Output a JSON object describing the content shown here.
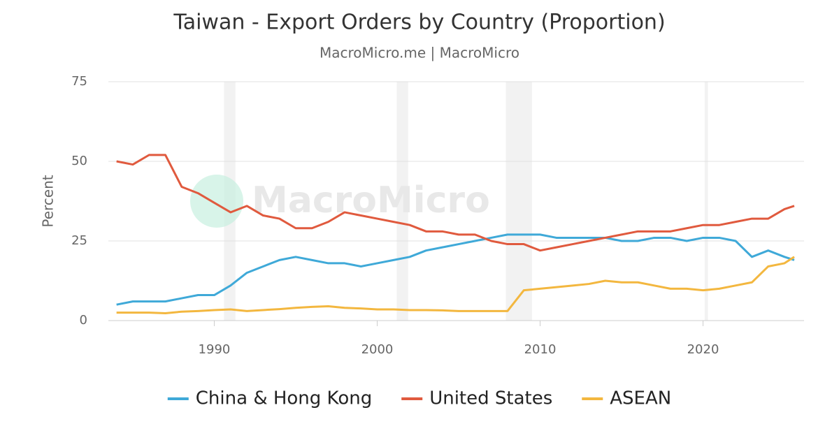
{
  "chart_data": {
    "type": "line",
    "title": "Taiwan - Export Orders by Country (Proportion)",
    "subtitle": "MacroMicro.me | MacroMicro",
    "watermark": "MacroMicro",
    "y_label": "Percent",
    "x": [
      1984,
      1985,
      1986,
      1987,
      1988,
      1989,
      1990,
      1991,
      1992,
      1993,
      1994,
      1995,
      1996,
      1997,
      1998,
      1999,
      2000,
      2001,
      2002,
      2003,
      2004,
      2005,
      2006,
      2007,
      2008,
      2009,
      2010,
      2011,
      2012,
      2013,
      2014,
      2015,
      2016,
      2017,
      2018,
      2019,
      2020,
      2021,
      2022,
      2023,
      2024,
      2025,
      2025.6
    ],
    "series": [
      {
        "name": "China & Hong Kong",
        "color": "#3fa9d8",
        "values": [
          5,
          6,
          6,
          6,
          7,
          8,
          8,
          11,
          15,
          17,
          19,
          20,
          19,
          18,
          18,
          17,
          18,
          19,
          20,
          22,
          23,
          24,
          25,
          26,
          27,
          27,
          27,
          26,
          26,
          26,
          26,
          25,
          25,
          26,
          26,
          25,
          26,
          26,
          25,
          20,
          22,
          20,
          19
        ]
      },
      {
        "name": "United States",
        "color": "#e05a3e",
        "values": [
          50,
          49,
          52,
          52,
          42,
          40,
          37,
          34,
          36,
          33,
          32,
          29,
          29,
          31,
          34,
          33,
          32,
          31,
          30,
          28,
          28,
          27,
          27,
          25,
          24,
          24,
          22,
          23,
          24,
          25,
          26,
          27,
          28,
          28,
          28,
          29,
          30,
          30,
          31,
          32,
          32,
          35,
          36
        ]
      },
      {
        "name": "ASEAN",
        "color": "#f3b73f",
        "values": [
          2.5,
          2.5,
          2.5,
          2.3,
          2.8,
          3,
          3.3,
          3.5,
          3,
          3.3,
          3.6,
          4,
          4.3,
          4.5,
          4,
          3.8,
          3.5,
          3.5,
          3.3,
          3.3,
          3.2,
          3,
          3,
          3,
          3,
          9.5,
          10,
          10.5,
          11,
          11.5,
          12.5,
          12,
          12,
          11,
          10,
          10,
          9.5,
          10,
          11,
          12,
          17,
          18,
          20
        ]
      }
    ],
    "bands": [
      [
        1990.6,
        1991.3
      ],
      [
        2001.2,
        2001.9
      ],
      [
        2007.9,
        2009.5
      ],
      [
        2020.1,
        2020.3
      ]
    ],
    "xlim": [
      1983.5,
      2026.2
    ],
    "xticks": [
      1990,
      2000,
      2010,
      2020
    ],
    "ylim": [
      0,
      75
    ],
    "yticks": [
      0,
      25,
      50,
      75
    ],
    "grid": true
  }
}
